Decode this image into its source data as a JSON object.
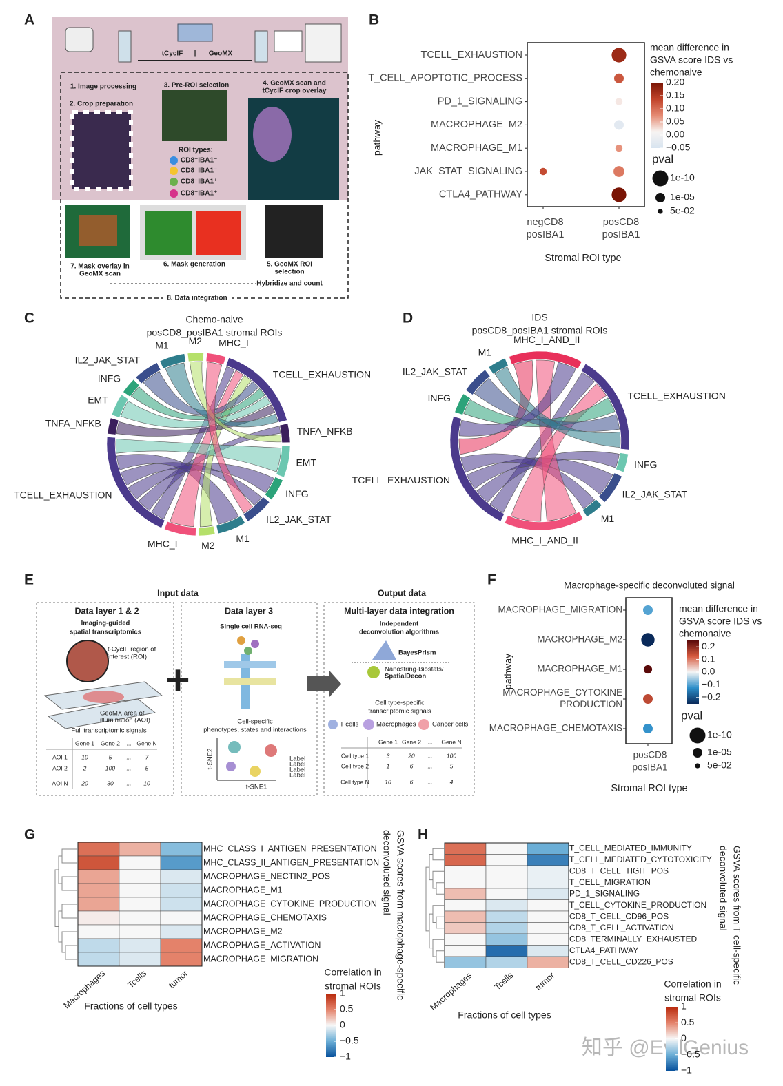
{
  "diagrams": {
    "A": {
      "label": "A",
      "tcycif": "tCycIF",
      "geomx": "GeoMX",
      "step1": "1. Image processing",
      "step2": "2. Crop preparation",
      "step3": "3. Pre-ROI selection",
      "step4": [
        "4. GeoMX scan and",
        "tCycIF crop overlay"
      ],
      "roi_title": "ROI types:",
      "roi_types": [
        "CD8⁻IBA1⁻",
        "CD8⁺IBA1⁻",
        "CD8⁻IBA1⁺",
        "CD8⁺IBA1⁺"
      ],
      "step5": [
        "5. GeoMX ROI",
        "selection"
      ],
      "step6": "6. Mask generation",
      "step7": [
        "7. Mask overlay in",
        "GeoMX scan"
      ],
      "hybridize": "Hybridize and count",
      "step8": "8. Data integration"
    },
    "E": {
      "label": "E",
      "input": "Input data",
      "output": "Output data",
      "box1": {
        "title": "Data layer 1 & 2",
        "subtitle": [
          "Imaging-guided",
          "spatial transcriptomics"
        ],
        "roi_note": [
          "t-CycIF region of",
          "interest (ROI)"
        ],
        "aoi_note": [
          "GeoMX area of",
          "illumination (AOI)"
        ],
        "signal": "Full transcriptomic signals",
        "table": {
          "header": [
            "Gene 1",
            "Gene 2",
            "...",
            "Gene N"
          ],
          "rows": [
            [
              "AOI 1",
              10,
              5,
              "...",
              7
            ],
            [
              "AOI 2",
              2,
              100,
              "...",
              5
            ],
            [
              "AOI N",
              20,
              30,
              "...",
              10
            ]
          ]
        }
      },
      "box2": {
        "title": "Data layer 3",
        "subtitle": "Single cell RNA-seq",
        "note": [
          "Cell-specific",
          "phenotypes, states and interactions"
        ],
        "yaxis": "t-SNE2",
        "xaxis": "t-SNE1",
        "legend": [
          "Label",
          "Label",
          "Label",
          "Label"
        ]
      },
      "box3": {
        "title": "Multi-layer data integration",
        "subtitle": [
          "Independent",
          "deconvolution algorithms"
        ],
        "tool1": "BayesPrism",
        "tool2": [
          "Nanostring-Biostats/",
          "SpatialDecon"
        ],
        "note": [
          "Cell type-specific",
          "transcriptomic signals"
        ],
        "cells": [
          "T cells",
          "Macrophages",
          "Cancer cells"
        ],
        "table": {
          "header": [
            "Gene 1",
            "Gene 2",
            "...",
            "Gene N"
          ],
          "rows": [
            [
              "Cell type 1",
              3,
              20,
              "...",
              100
            ],
            [
              "Cell type 2",
              1,
              6,
              "...",
              5
            ],
            [
              "Cell type N",
              10,
              6,
              "...",
              4
            ]
          ]
        }
      }
    }
  },
  "chart_data": [
    {
      "type": "dotplot",
      "panel": "B",
      "ylabel": "pathway",
      "xlabel": "Stromal ROI type",
      "categories": [
        "TCELL_EXHAUSTION",
        "T_CELL_APOPTOTIC_PROCESS",
        "PD_1_SIGNALING",
        "MACROPHAGE_M2",
        "MACROPHAGE_M1",
        "JAK_STAT_SIGNALING",
        "CTLA4_PATHWAY"
      ],
      "series": [
        {
          "name": [
            "negCD8",
            "posIBA1"
          ],
          "values": [
            null,
            null,
            null,
            null,
            null,
            0.13,
            null
          ],
          "pvals": [
            null,
            null,
            null,
            null,
            null,
            0.001,
            null
          ]
        },
        {
          "name": [
            "posCD8",
            "posIBA1"
          ],
          "values": [
            0.17,
            0.12,
            0.02,
            -0.03,
            0.07,
            0.09,
            0.2
          ],
          "pvals": [
            1e-09,
            1e-05,
            0.001,
            1e-05,
            0.001,
            1e-06,
            1e-09
          ]
        }
      ],
      "color_title": [
        "mean difference in",
        "GSVA score IDS vs",
        "chemonaive"
      ],
      "clim": [
        -0.05,
        0.2
      ],
      "cticks": [
        {
          "value": 0.2,
          "label": "0.20"
        },
        0.15,
        {
          "value": 0.1,
          "label": "0.10"
        },
        0.05,
        {
          "value": 0,
          "label": "0.00"
        },
        {
          "value": -0.05,
          "label": "−0.05"
        }
      ],
      "colorscale": [
        "#d8e4f0",
        "#f7f4f2",
        "#e58a72",
        "#c0432a",
        "#7a1505"
      ],
      "size_title": "pval",
      "size_legend": [
        {
          "value": 1e-10,
          "label": "1e-10"
        },
        {
          "value": 1e-05,
          "label": "1e-05"
        },
        {
          "value": 0.05,
          "label": "5e-02"
        }
      ]
    },
    {
      "type": "chord",
      "panel": "C",
      "title": [
        "Chemo-naive",
        "posCD8_posIBA1 stromal ROIs"
      ],
      "sectors": [
        {
          "name": "M1",
          "color": "#2e7d8c",
          "value": 16
        },
        {
          "name": "M2",
          "color": "#b5e06a",
          "value": 10
        },
        {
          "name": "MHC_I",
          "color": "#f0507a",
          "value": 12
        },
        {
          "name": "TCELL_EXHAUSTION",
          "color": "#4b3a8c",
          "value": 55
        },
        {
          "name": "TNFA_NFKB",
          "color": "#3b1f5c",
          "value": 12
        },
        {
          "name": "EMT",
          "color": "#6cc7b0",
          "value": 20
        },
        {
          "name": "INFG",
          "color": "#2ca37a",
          "value": 14
        },
        {
          "name": "IL2_JAK_STAT",
          "color": "#3a4e8c",
          "value": 18
        },
        {
          "name": "M1",
          "color": "#2e7d8c",
          "value": 18
        },
        {
          "name": "M2",
          "color": "#b5e06a",
          "value": 10
        },
        {
          "name": "MHC_I",
          "color": "#f0507a",
          "value": 20
        },
        {
          "name": "TCELL_EXHAUSTION",
          "color": "#4b3a8c",
          "value": 70
        },
        {
          "name": "TNFA_NFKB",
          "color": "#3b1f5c",
          "value": 10
        },
        {
          "name": "EMT",
          "color": "#6cc7b0",
          "value": 14
        },
        {
          "name": "INFG",
          "color": "#2ca37a",
          "value": 10
        },
        {
          "name": "IL2_JAK_STAT",
          "color": "#3a4e8c",
          "value": 16
        }
      ],
      "links": [
        [
          11,
          3
        ],
        [
          11,
          4
        ],
        [
          11,
          6
        ],
        [
          11,
          7
        ],
        [
          11,
          8
        ],
        [
          10,
          3
        ],
        [
          9,
          3
        ],
        [
          5,
          11
        ],
        [
          15,
          3
        ],
        [
          14,
          3
        ],
        [
          13,
          3
        ],
        [
          12,
          3
        ],
        [
          0,
          3
        ],
        [
          1,
          4
        ],
        [
          2,
          7
        ]
      ]
    },
    {
      "type": "chord",
      "panel": "D",
      "title": [
        "IDS",
        "posCD8_posIBA1 stromal ROIs"
      ],
      "sectors": [
        {
          "name": "MHC_I_AND_II",
          "color": "#e8305a",
          "value": 48
        },
        {
          "name": "TCELL_EXHAUSTION",
          "color": "#4b3a8c",
          "value": 65
        },
        {
          "name": "INFG",
          "color": "#6cc7b0",
          "value": 12
        },
        {
          "name": "IL2_JAK_STAT",
          "color": "#3a4e8c",
          "value": 20
        },
        {
          "name": "M1",
          "color": "#2e7d8c",
          "value": 12
        },
        {
          "name": "MHC_I_AND_II",
          "color": "#f0507a",
          "value": 52
        },
        {
          "name": "TCELL_EXHAUSTION",
          "color": "#4b3a8c",
          "value": 80
        },
        {
          "name": "INFG",
          "color": "#2ca37a",
          "value": 13
        },
        {
          "name": "IL2_JAK_STAT",
          "color": "#3a4e8c",
          "value": 18
        },
        {
          "name": "M1",
          "color": "#2e7d8c",
          "value": 12
        }
      ],
      "links": [
        [
          6,
          1
        ],
        [
          6,
          2
        ],
        [
          6,
          3
        ],
        [
          6,
          4
        ],
        [
          0,
          6
        ],
        [
          5,
          0
        ],
        [
          5,
          1
        ],
        [
          7,
          1
        ],
        [
          8,
          1
        ],
        [
          9,
          1
        ],
        [
          6,
          0
        ]
      ]
    },
    {
      "type": "dotplot",
      "panel": "F",
      "title": "Macrophage-specific deconvoluted signal",
      "ylabel": "pathway",
      "xlabel": "Stromal ROI type",
      "categories": [
        "MACROPHAGE_MIGRATION",
        "MACROPHAGE_M2",
        "MACROPHAGE_M1",
        [
          "MACROPHAGE_CYTOKINE",
          "PRODUCTION"
        ],
        "MACROPHAGE_CHEMOTAXIS"
      ],
      "series": [
        {
          "name": [
            "posCD8",
            "posIBA1"
          ],
          "values": [
            -0.1,
            -0.25,
            0.25,
            0.15,
            -0.12
          ],
          "pvals": [
            1e-05,
            1e-08,
            0.0001,
            1e-05,
            1e-05
          ]
        }
      ],
      "color_title": [
        "mean difference in",
        "GSVA score IDS vs",
        "chemonaive"
      ],
      "clim": [
        -0.25,
        0.25
      ],
      "cticks": [
        0.2,
        0.1,
        {
          "value": 0,
          "label": "0.0"
        },
        {
          "value": -0.1,
          "label": "−0.1"
        },
        {
          "value": -0.2,
          "label": "−0.2"
        }
      ],
      "colorscale": [
        "#0a2a5a",
        "#2c8ec9",
        "#f5f5f5",
        "#d65a3f",
        "#5a0a0a"
      ],
      "size_title": "pval",
      "size_legend": [
        {
          "value": 1e-10,
          "label": "1e-10"
        },
        {
          "value": 1e-05,
          "label": "1e-05"
        },
        {
          "value": 0.05,
          "label": "5e-02"
        }
      ]
    },
    {
      "type": "heatmap",
      "panel": "G",
      "rows": [
        "MHC_CLASS_I_ANTIGEN_PRESENTATION",
        "MHC_CLASS_II_ANTIGEN_PRESENTATION",
        "MACROPHAGE_NECTIN2_POS",
        "MACROPHAGE_M1",
        "MACROPHAGE_CYTOKINE_PRODUCTION",
        "MACROPHAGE_CHEMOTAXIS",
        "MACROPHAGE_M2",
        "MACROPHAGE_ACTIVATION",
        "MACROPHAGE_MIGRATION"
      ],
      "columns": [
        "Macrophages",
        "Tcells",
        "tumor"
      ],
      "values": [
        [
          0.6,
          0.3,
          -0.4
        ],
        [
          0.75,
          0,
          -0.6
        ],
        [
          0.35,
          0,
          -0.1
        ],
        [
          0.35,
          0,
          -0.15
        ],
        [
          0.35,
          0,
          -0.15
        ],
        [
          0.05,
          0,
          0
        ],
        [
          0,
          0,
          -0.1
        ],
        [
          -0.2,
          -0.1,
          0.5
        ],
        [
          -0.2,
          -0.1,
          0.5
        ]
      ],
      "xlabel": "Fractions of cell types",
      "side_label": [
        "GSVA scores from macrophage-specific",
        "deconvoluted signal"
      ],
      "legend_title": [
        "Correlation in",
        "stromal ROIs"
      ],
      "clim": [
        -1,
        1
      ],
      "cticks": [
        1,
        0.5,
        0,
        {
          "value": -0.5,
          "label": "−0.5"
        },
        {
          "value": -1,
          "label": "−1"
        }
      ],
      "colorscale": [
        "#08519c",
        "#6baed6",
        "#f7f7f7",
        "#e4826a",
        "#b8290c"
      ]
    },
    {
      "type": "heatmap",
      "panel": "H",
      "rows": [
        "T_CELL_MEDIATED_IMMUNITY",
        "T_CELL_MEDIATED_CYTOTOXICITY",
        "CD8_T_CELL_TIGIT_POS",
        "T_CELL_MIGRATION",
        "PD_1_SIGNALING",
        "T_CELL_CYTOKINE_PRODUCTION",
        "CD8_T_CELL_CD96_POS",
        "CD8_T_CELL_ACTIVATION",
        "CD8_TERMINALLY_EXHAUSTED",
        "CTLA4_PATHWAY",
        "CD8_T_CELL_CD226_POS"
      ],
      "columns": [
        "Macrophages",
        "Tcells",
        "tumor"
      ],
      "values": [
        [
          0.6,
          0,
          -0.5
        ],
        [
          0.65,
          0,
          -0.75
        ],
        [
          0,
          0,
          -0.05
        ],
        [
          0,
          0,
          -0.05
        ],
        [
          0.25,
          0,
          -0.1
        ],
        [
          0,
          -0.1,
          0
        ],
        [
          0.25,
          -0.2,
          0
        ],
        [
          0.2,
          -0.25,
          0
        ],
        [
          0,
          -0.35,
          0
        ],
        [
          0,
          -0.85,
          -0.1
        ],
        [
          -0.35,
          -0.25,
          0.3
        ]
      ],
      "xlabel": "Fractions of cell types",
      "side_label": [
        "GSVA scores from T cell-specific",
        "deconvoluted signal"
      ],
      "legend_title": [
        "Correlation in",
        "stromal ROIs"
      ],
      "clim": [
        -1,
        1
      ],
      "cticks": [
        1,
        0.5,
        0,
        {
          "value": -0.5,
          "label": "−0.5"
        },
        {
          "value": -1,
          "label": "−1"
        }
      ],
      "colorscale": [
        "#08519c",
        "#6baed6",
        "#f7f7f7",
        "#e4826a",
        "#b8290c"
      ]
    }
  ],
  "watermark": "知乎 @EvilGenius"
}
